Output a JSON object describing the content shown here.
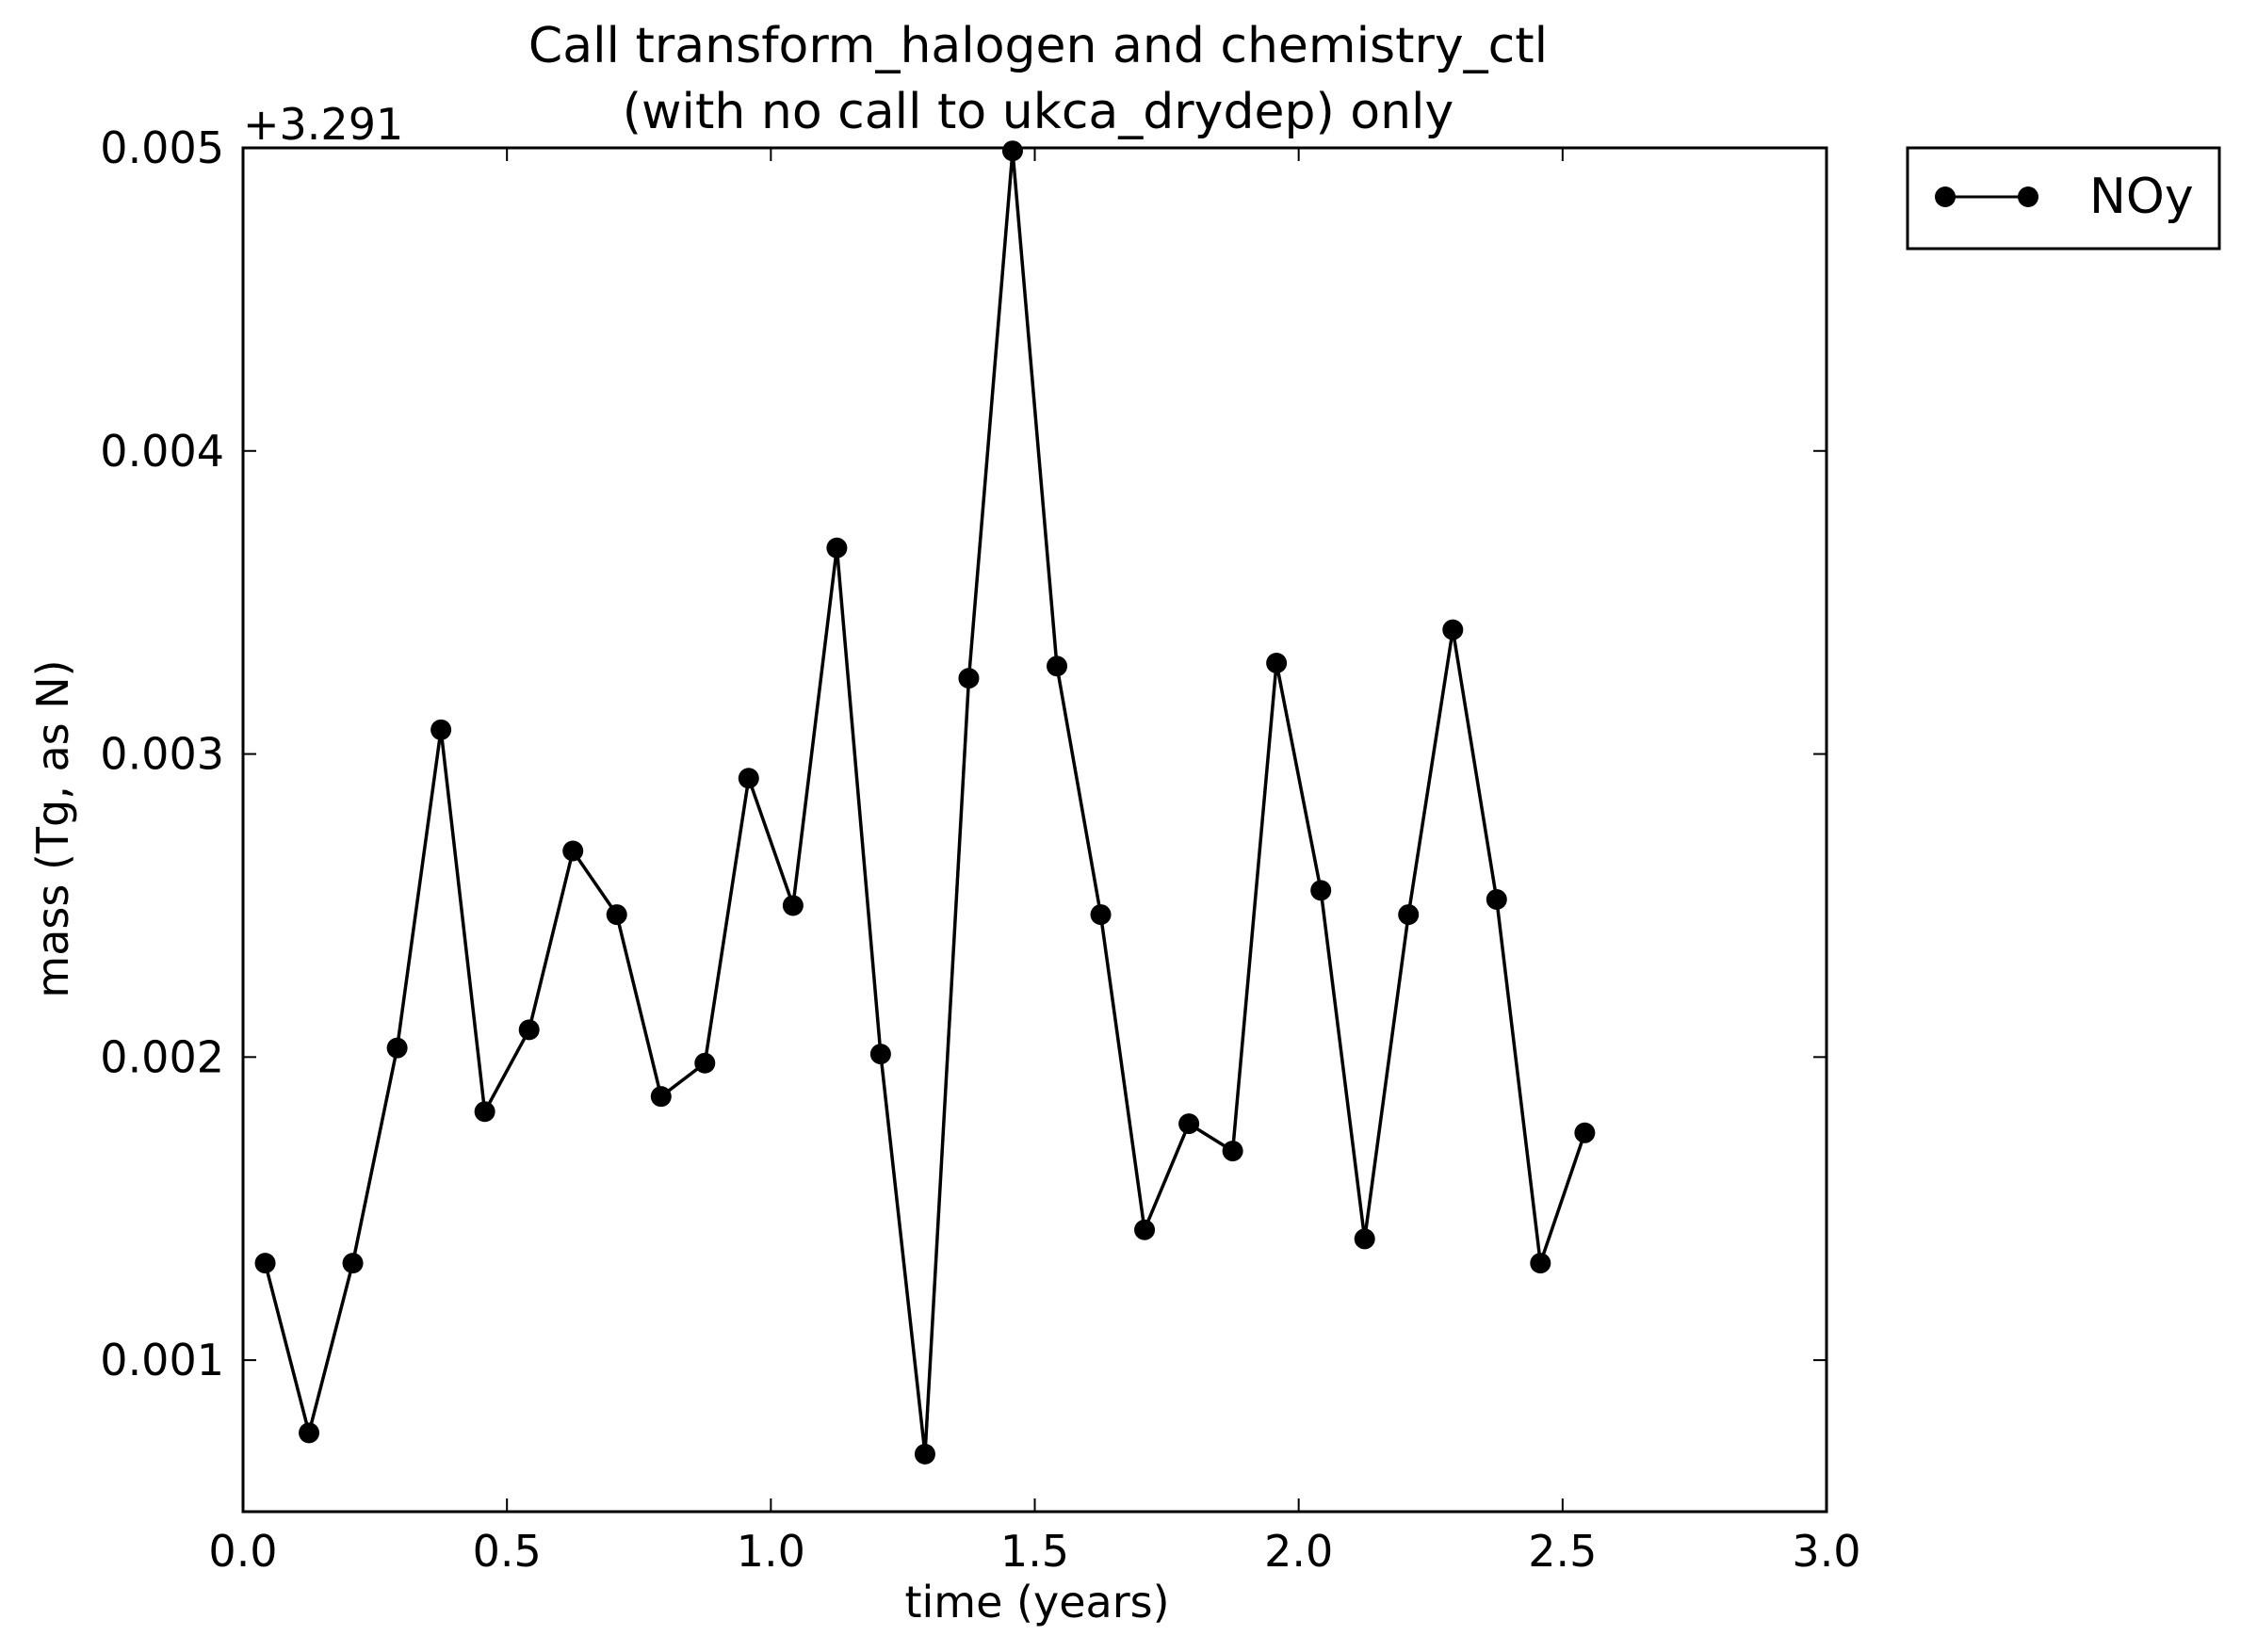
{
  "chart_data": {
    "type": "line",
    "title": "Call transform_halogen and chemistry_ctl\n(with no call to ukca_drydep) only",
    "xlabel": "time (years)",
    "ylabel": "mass (Tg, as N)",
    "y_offset_label": "+3.291",
    "xlim": [
      0.0,
      3.0
    ],
    "ylim": [
      0.0005,
      0.005
    ],
    "x_ticks": [
      "0.0",
      "0.5",
      "1.0",
      "1.5",
      "2.0",
      "2.5",
      "3.0"
    ],
    "y_ticks": [
      "0.001",
      "0.002",
      "0.003",
      "0.004",
      "0.005"
    ],
    "grid": false,
    "legend_position": "outside-top-right",
    "series": [
      {
        "name": "NOy",
        "color": "#000000",
        "marker": "circle",
        "x": [
          0.042,
          0.125,
          0.208,
          0.292,
          0.375,
          0.458,
          0.542,
          0.625,
          0.708,
          0.792,
          0.875,
          0.958,
          1.042,
          1.125,
          1.208,
          1.292,
          1.375,
          1.458,
          1.542,
          1.625,
          1.708,
          1.792,
          1.875,
          1.958,
          2.042,
          2.125,
          2.208,
          2.292,
          2.375,
          2.458,
          2.542
        ],
        "y": [
          0.00132,
          0.00076,
          0.00132,
          0.00203,
          0.00308,
          0.00182,
          0.00209,
          0.00268,
          0.00247,
          0.00187,
          0.00198,
          0.00292,
          0.0025,
          0.00368,
          0.00201,
          0.00069,
          0.00325,
          0.00499,
          0.00329,
          0.00247,
          0.00143,
          0.00178,
          0.00169,
          0.0033,
          0.00255,
          0.0014,
          0.00247,
          0.00341,
          0.00252,
          0.00132,
          0.00175
        ]
      }
    ]
  }
}
